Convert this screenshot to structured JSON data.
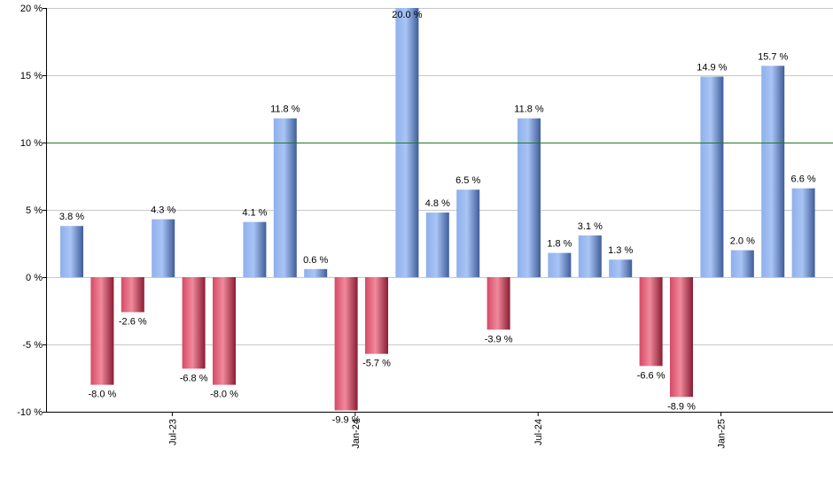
{
  "chart_data": {
    "type": "bar",
    "title": "",
    "xlabel": "",
    "ylabel": "",
    "ylim": [
      -10,
      20
    ],
    "y_ticks": [
      20,
      15,
      10,
      5,
      0,
      -5,
      -10
    ],
    "y_tick_labels": [
      "20 %",
      "15 %",
      "10 %",
      "5 %",
      "0 %",
      "-5 %",
      "-10 %"
    ],
    "x_tick_labels": [
      {
        "label": "Jul-23",
        "after_bar": 3
      },
      {
        "label": "Jan-24",
        "after_bar": 9
      },
      {
        "label": "Jul-24",
        "after_bar": 15
      },
      {
        "label": "Jan-25",
        "after_bar": 21
      }
    ],
    "values": [
      3.8,
      -8.0,
      -2.6,
      4.3,
      -6.8,
      -8.0,
      4.1,
      11.8,
      0.6,
      -9.9,
      -5.7,
      20.0,
      4.8,
      6.5,
      -3.9,
      11.8,
      1.8,
      3.1,
      1.3,
      -6.6,
      -8.9,
      14.9,
      2.0,
      15.7,
      6.6
    ],
    "value_labels": [
      "3.8 %",
      "-8.0 %",
      "-2.6 %",
      "4.3 %",
      "-6.8 %",
      "-8.0 %",
      "4.1 %",
      "11.8 %",
      "0.6 %",
      "-9.9 %",
      "-5.7 %",
      "20.0 %",
      "4.8 %",
      "6.5 %",
      "-3.9 %",
      "11.8 %",
      "1.8 %",
      "3.1 %",
      "1.3 %",
      "-6.6 %",
      "-8.9 %",
      "14.9 %",
      "2.0 %",
      "15.7 %",
      "6.6 %"
    ],
    "reference_line": 10,
    "grid": true,
    "colors": {
      "positive_light": "#a9c4f5",
      "positive_dark": "#3f5d99",
      "negative_light": "#f08a9c",
      "negative_dark": "#8a1c33",
      "reference_line": "#1f7a1f",
      "grid": "#c8c8c8"
    }
  }
}
